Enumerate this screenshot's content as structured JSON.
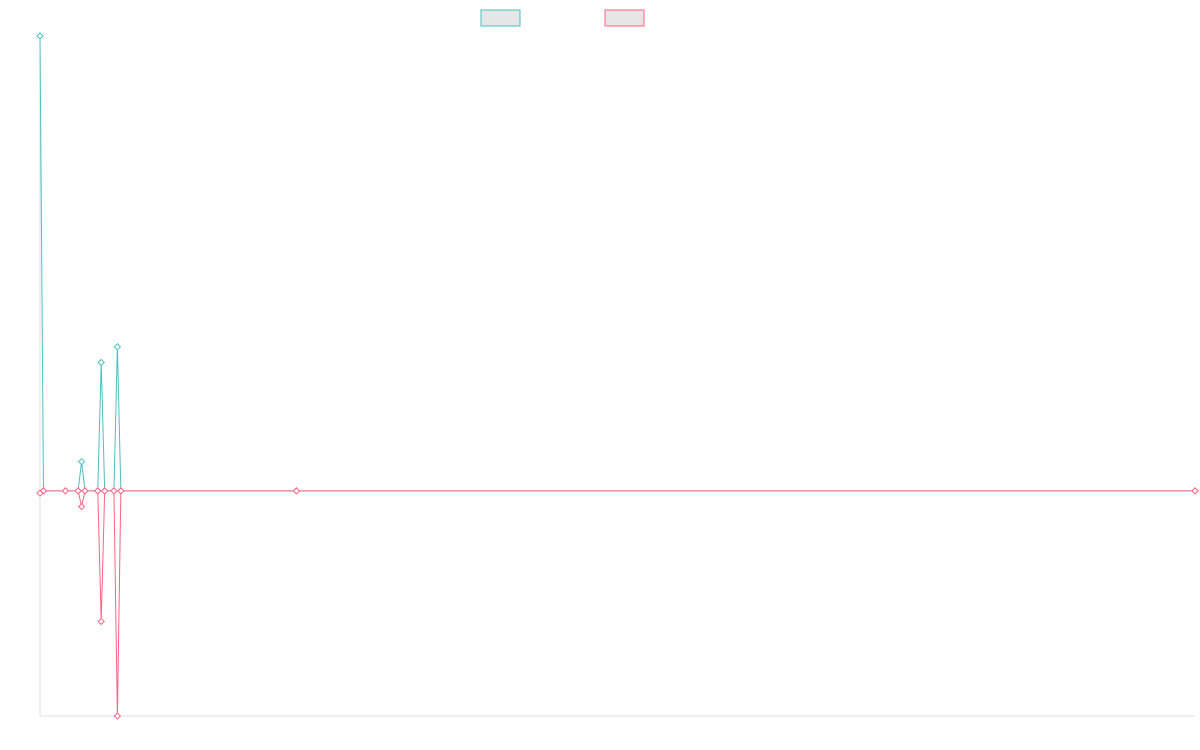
{
  "chart_data": {
    "type": "line",
    "x": [
      0,
      0.3,
      2.2,
      3.3,
      3.6,
      3.9,
      5.0,
      5.3,
      5.6,
      6.4,
      6.7,
      7.0,
      22.2,
      100
    ],
    "series": [
      {
        "color": "#4bc0c0",
        "values": [
          202,
          0,
          0,
          0,
          13,
          0,
          0,
          57,
          0,
          0,
          64,
          0,
          0,
          0
        ]
      },
      {
        "color": "#ff6384",
        "values": [
          -1,
          0,
          0,
          0,
          -7,
          0,
          0,
          -58,
          0,
          0,
          -100,
          0,
          0,
          0
        ]
      }
    ],
    "xlim": [
      0,
      100
    ],
    "ylim": [
      -100,
      202
    ]
  }
}
